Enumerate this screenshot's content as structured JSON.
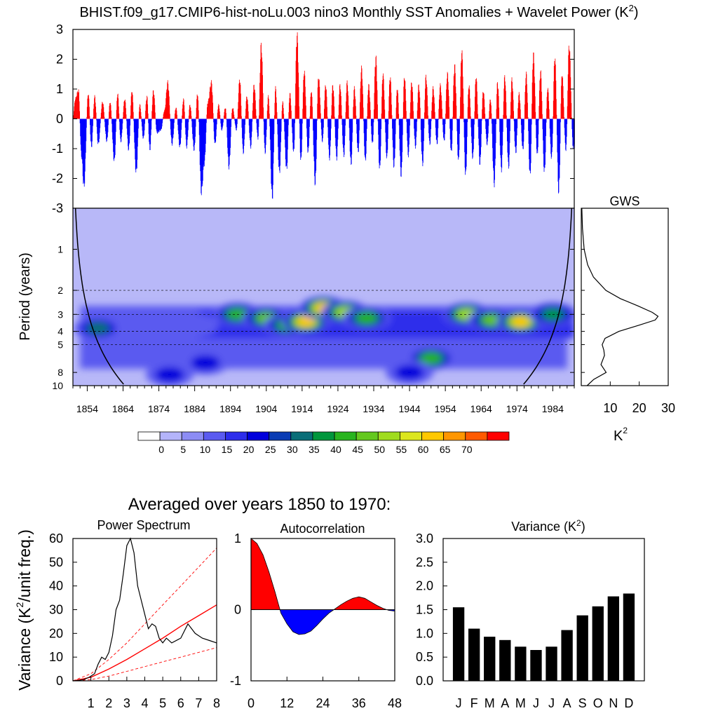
{
  "chart_data": [
    {
      "type": "bar",
      "title": "BHIST.f09_g17.CMIP6-hist-noLu.003 nino3 Monthly SST Anomalies + Wavelet Power (K",
      "title_sup": "2",
      "title_close": ")",
      "ylim": [
        -3,
        3
      ],
      "yticks": [
        "3",
        "2",
        "1",
        "0",
        "-1",
        "-2",
        "-3"
      ],
      "x_range": [
        1850,
        1990
      ],
      "positive_color": "#ff0000",
      "negative_color": "#0000ff",
      "peaks": [
        [
          1850.5,
          0.7
        ],
        [
          1851.5,
          1.0
        ],
        [
          1852.3,
          -1.3
        ],
        [
          1853.0,
          -2.4
        ],
        [
          1854.2,
          0.9
        ],
        [
          1855.1,
          -1.0
        ],
        [
          1856.0,
          0.8
        ],
        [
          1857.0,
          -0.9
        ],
        [
          1858.2,
          0.6
        ],
        [
          1859.4,
          -0.8
        ],
        [
          1860.3,
          0.6
        ],
        [
          1861.5,
          -1.5
        ],
        [
          1862.4,
          0.9
        ],
        [
          1863.3,
          -0.8
        ],
        [
          1864.4,
          0.7
        ],
        [
          1865.5,
          -1.1
        ],
        [
          1866.4,
          1.0
        ],
        [
          1867.6,
          -1.9
        ],
        [
          1868.6,
          0.5
        ],
        [
          1869.6,
          -0.7
        ],
        [
          1870.6,
          0.8
        ],
        [
          1871.4,
          -1.1
        ],
        [
          1872.4,
          1.0
        ],
        [
          1873.4,
          -0.5
        ],
        [
          1874.5,
          -0.4
        ],
        [
          1875.5,
          0.3
        ],
        [
          1876.4,
          1.3
        ],
        [
          1877.6,
          -0.9
        ],
        [
          1878.7,
          0.4
        ],
        [
          1879.8,
          -1.0
        ],
        [
          1880.8,
          0.7
        ],
        [
          1881.7,
          -1.0
        ],
        [
          1882.6,
          0.5
        ],
        [
          1883.8,
          -1.1
        ],
        [
          1884.7,
          0.9
        ],
        [
          1885.8,
          -2.6
        ],
        [
          1886.6,
          -1.6
        ],
        [
          1887.6,
          0.6
        ],
        [
          1888.6,
          1.3
        ],
        [
          1889.6,
          -0.9
        ],
        [
          1890.6,
          0.5
        ],
        [
          1891.5,
          -0.4
        ],
        [
          1892.5,
          0.4
        ],
        [
          1893.5,
          -1.7
        ],
        [
          1894.5,
          0.4
        ],
        [
          1895.6,
          -0.4
        ],
        [
          1896.5,
          1.4
        ],
        [
          1897.5,
          -1.2
        ],
        [
          1898.5,
          0.8
        ],
        [
          1899.6,
          -1.0
        ],
        [
          1900.5,
          1.2
        ],
        [
          1901.6,
          -0.7
        ],
        [
          1902.5,
          2.6
        ],
        [
          1903.6,
          -1.2
        ],
        [
          1904.5,
          0.8
        ],
        [
          1905.6,
          -2.8
        ],
        [
          1906.5,
          1.1
        ],
        [
          1907.6,
          -1.9
        ],
        [
          1908.5,
          0.6
        ],
        [
          1909.6,
          -1.8
        ],
        [
          1910.5,
          0.9
        ],
        [
          1911.6,
          -1.2
        ],
        [
          1912.5,
          3.0
        ],
        [
          1913.6,
          -1.5
        ],
        [
          1914.5,
          1.7
        ],
        [
          1915.6,
          -1.2
        ],
        [
          1916.5,
          1.0
        ],
        [
          1917.6,
          -2.3
        ],
        [
          1918.5,
          1.5
        ],
        [
          1919.6,
          -0.8
        ],
        [
          1920.5,
          1.2
        ],
        [
          1921.6,
          -1.4
        ],
        [
          1922.5,
          1.2
        ],
        [
          1923.6,
          -1.4
        ],
        [
          1924.5,
          1.2
        ],
        [
          1925.6,
          -1.3
        ],
        [
          1926.5,
          1.3
        ],
        [
          1927.6,
          -1.6
        ],
        [
          1928.5,
          1.1
        ],
        [
          1929.6,
          -1.2
        ],
        [
          1930.5,
          1.8
        ],
        [
          1931.6,
          -1.5
        ],
        [
          1932.5,
          1.2
        ],
        [
          1933.6,
          -0.9
        ],
        [
          1934.5,
          2.2
        ],
        [
          1935.6,
          -1.8
        ],
        [
          1936.5,
          1.6
        ],
        [
          1937.6,
          -1.4
        ],
        [
          1938.5,
          1.5
        ],
        [
          1939.6,
          -1.7
        ],
        [
          1940.5,
          1.1
        ],
        [
          1941.6,
          -2.0
        ],
        [
          1942.5,
          1.5
        ],
        [
          1943.6,
          -1.3
        ],
        [
          1944.5,
          1.3
        ],
        [
          1945.6,
          -1.0
        ],
        [
          1946.5,
          1.2
        ],
        [
          1947.6,
          -1.6
        ],
        [
          1948.5,
          1.5
        ],
        [
          1949.6,
          -0.9
        ],
        [
          1950.5,
          1.1
        ],
        [
          1951.6,
          -0.9
        ],
        [
          1952.5,
          1.2
        ],
        [
          1953.6,
          -0.8
        ],
        [
          1954.5,
          1.6
        ],
        [
          1955.6,
          -1.2
        ],
        [
          1956.5,
          1.9
        ],
        [
          1957.6,
          -1.5
        ],
        [
          1958.5,
          2.4
        ],
        [
          1959.6,
          -2.0
        ],
        [
          1960.5,
          1.2
        ],
        [
          1961.6,
          -1.4
        ],
        [
          1962.5,
          1.5
        ],
        [
          1963.6,
          -1.6
        ],
        [
          1964.5,
          1.0
        ],
        [
          1965.6,
          -0.9
        ],
        [
          1966.5,
          0.7
        ],
        [
          1967.6,
          -2.3
        ],
        [
          1968.5,
          1.3
        ],
        [
          1969.6,
          -1.8
        ],
        [
          1970.5,
          1.5
        ],
        [
          1971.6,
          -1.7
        ],
        [
          1972.5,
          1.4
        ],
        [
          1973.6,
          -1.2
        ],
        [
          1974.5,
          0.9
        ],
        [
          1975.6,
          -1.1
        ],
        [
          1976.5,
          1.6
        ],
        [
          1977.6,
          -2.0
        ],
        [
          1978.5,
          2.3
        ],
        [
          1979.6,
          -1.3
        ],
        [
          1980.5,
          1.7
        ],
        [
          1981.6,
          -1.9
        ],
        [
          1982.5,
          1.1
        ],
        [
          1983.6,
          -1.4
        ],
        [
          1984.5,
          2.2
        ],
        [
          1985.6,
          -2.6
        ],
        [
          1986.5,
          1.6
        ],
        [
          1987.6,
          -1.1
        ],
        [
          1988.5,
          2.6
        ],
        [
          1989.6,
          -1.0
        ]
      ]
    },
    {
      "type": "heatmap",
      "ylabel": "Period (years)",
      "xticks": [
        "1854",
        "1864",
        "1874",
        "1884",
        "1894",
        "1904",
        "1914",
        "1924",
        "1934",
        "1944",
        "1954",
        "1964",
        "1974",
        "1984"
      ],
      "xtick_values": [
        1854,
        1864,
        1874,
        1884,
        1894,
        1904,
        1914,
        1924,
        1934,
        1944,
        1954,
        1964,
        1974,
        1984
      ],
      "x_range": [
        1850,
        1990
      ],
      "yticks": [
        "1",
        "2",
        "3",
        "4",
        "5",
        "8",
        "10"
      ],
      "ytick_values": [
        1,
        2,
        3,
        4,
        5,
        8,
        10
      ],
      "period_range": [
        0.5,
        10
      ],
      "dashed_periods": [
        2,
        3,
        4,
        5
      ],
      "colorbar_labels": [
        "0",
        "5",
        "10",
        "15",
        "20",
        "25",
        "30",
        "35",
        "40",
        "45",
        "50",
        "55",
        "60",
        "65",
        "70"
      ],
      "colorbar_colors": [
        "#ffffff",
        "#b4b4fa",
        "#8c8cf5",
        "#5a5af0",
        "#2d2deb",
        "#0000dc",
        "#0a3cb4",
        "#0a6e78",
        "#00963c",
        "#28b41e",
        "#64c81e",
        "#a0dc1e",
        "#dce61e",
        "#ffc800",
        "#ff9600",
        "#ff5a00",
        "#ff0000"
      ],
      "background_color": "#b8b8f8",
      "hotspots": [
        {
          "year": 1857,
          "period": 3.8,
          "power": 30
        },
        {
          "year": 1868,
          "period": 3.4,
          "power": 12
        },
        {
          "year": 1884,
          "period": 3.6,
          "power": 8
        },
        {
          "year": 1887,
          "period": 6.8,
          "power": 22
        },
        {
          "year": 1896,
          "period": 3.0,
          "power": 42
        },
        {
          "year": 1904,
          "period": 3.2,
          "power": 45
        },
        {
          "year": 1910,
          "period": 3.6,
          "power": 40
        },
        {
          "year": 1915,
          "period": 3.4,
          "power": 62
        },
        {
          "year": 1920,
          "period": 2.7,
          "power": 60
        },
        {
          "year": 1926,
          "period": 2.9,
          "power": 50
        },
        {
          "year": 1932,
          "period": 3.2,
          "power": 38
        },
        {
          "year": 1950,
          "period": 6.3,
          "power": 42
        },
        {
          "year": 1960,
          "period": 3.0,
          "power": 48
        },
        {
          "year": 1967,
          "period": 3.3,
          "power": 45
        },
        {
          "year": 1975,
          "period": 3.4,
          "power": 62
        },
        {
          "year": 1984,
          "period": 3.0,
          "power": 35
        },
        {
          "year": 1944,
          "period": 8.0,
          "power": 20
        },
        {
          "year": 1877,
          "period": 8.3,
          "power": 18
        }
      ]
    },
    {
      "type": "line",
      "title": "GWS",
      "xlabel": "K",
      "xlabel_sup": "2",
      "xticks": [
        "10",
        "20",
        "30"
      ],
      "xtick_values": [
        10,
        20,
        30
      ],
      "xlim": [
        0,
        30
      ],
      "period": [
        0.5,
        0.7,
        1.0,
        1.3,
        1.6,
        2.0,
        2.3,
        2.6,
        2.9,
        3.1,
        3.3,
        3.6,
        4.0,
        4.5,
        5.0,
        5.5,
        6.0,
        7.0,
        8.0,
        9.0,
        10.0
      ],
      "power": [
        0.2,
        0.4,
        1.0,
        2.2,
        4.2,
        8.5,
        13.5,
        19.5,
        24.5,
        26.5,
        25.5,
        20.0,
        13.0,
        8.2,
        7.2,
        7.8,
        8.0,
        6.8,
        8.6,
        4.3,
        2.0
      ]
    },
    {
      "heading": "Averaged over years 1850 to 1970:",
      "type": "line",
      "title": "Power Spectrum",
      "ylabel": "Variance (K",
      "ylabel_sup": "2",
      "ylabel_close": "/unit freq.)",
      "ylim": [
        0,
        60
      ],
      "yticks": [
        "0",
        "10",
        "20",
        "30",
        "40",
        "50",
        "60"
      ],
      "xlim": [
        0,
        8
      ],
      "xticks": [
        "1",
        "2",
        "3",
        "4",
        "5",
        "6",
        "7",
        "8"
      ],
      "spectrum": {
        "x": [
          0,
          0.3,
          0.6,
          0.9,
          1.2,
          1.4,
          1.6,
          1.8,
          2.0,
          2.2,
          2.4,
          2.6,
          2.8,
          3.0,
          3.2,
          3.4,
          3.6,
          3.8,
          4.0,
          4.2,
          4.4,
          4.6,
          4.8,
          5.0,
          5.2,
          5.5,
          6.0,
          6.4,
          6.8,
          7.2,
          7.6,
          8.0
        ],
        "y": [
          0,
          0.2,
          0.5,
          1.5,
          3,
          7,
          10,
          9,
          12,
          19,
          30,
          34,
          45,
          57,
          60,
          54,
          40,
          34,
          28,
          22,
          24,
          23,
          18,
          16,
          18,
          16,
          18,
          24,
          20,
          18,
          17,
          16
        ]
      },
      "red_noise": {
        "x": [
          0,
          1,
          2,
          3,
          4,
          5,
          6,
          7,
          8
        ],
        "y": [
          0,
          1.5,
          5,
          9,
          13.5,
          18,
          23,
          27.5,
          32
        ]
      },
      "upper_bound": {
        "x": [
          0,
          1,
          2,
          3,
          4,
          5,
          6,
          7,
          8
        ],
        "y": [
          0,
          3,
          9,
          16,
          24,
          32,
          40,
          48,
          56
        ]
      },
      "lower_bound": {
        "x": [
          0,
          1,
          2,
          3,
          4,
          5,
          6,
          7,
          8
        ],
        "y": [
          0,
          0.5,
          2,
          4,
          6,
          8,
          10,
          12,
          14
        ]
      }
    },
    {
      "type": "area",
      "title": "Autocorrelation",
      "ylim": [
        -1,
        1
      ],
      "yticks": [
        "1",
        "0",
        "-1"
      ],
      "xlim": [
        0,
        48
      ],
      "xticks": [
        "0",
        "12",
        "24",
        "36",
        "48"
      ],
      "x": [
        0,
        2,
        4,
        6,
        8,
        9,
        10,
        12,
        14,
        16,
        18,
        20,
        22,
        24,
        26,
        28,
        29,
        30,
        32,
        34,
        36,
        38,
        40,
        42,
        44,
        46,
        48
      ],
      "y": [
        1,
        0.93,
        0.77,
        0.53,
        0.25,
        0.1,
        -0.05,
        -0.2,
        -0.31,
        -0.35,
        -0.34,
        -0.3,
        -0.22,
        -0.13,
        -0.05,
        0.01,
        0.04,
        0.07,
        0.12,
        0.16,
        0.18,
        0.16,
        0.11,
        0.06,
        0.02,
        -0.01,
        -0.02
      ],
      "positive_color": "#ff0000",
      "negative_color": "#0000ff"
    },
    {
      "type": "bar",
      "title": "Variance (K",
      "title_sup": "2",
      "title_close": ")",
      "ylim": [
        0,
        3
      ],
      "yticks": [
        "0.0",
        "0.5",
        "1.0",
        "1.5",
        "2.0",
        "2.5",
        "3.0"
      ],
      "categories": [
        "J",
        "F",
        "M",
        "A",
        "M",
        "J",
        "J",
        "A",
        "S",
        "O",
        "N",
        "D"
      ],
      "values": [
        1.55,
        1.1,
        0.93,
        0.86,
        0.72,
        0.65,
        0.72,
        1.07,
        1.38,
        1.57,
        1.78,
        1.84
      ],
      "bar_color": "#000000"
    }
  ]
}
